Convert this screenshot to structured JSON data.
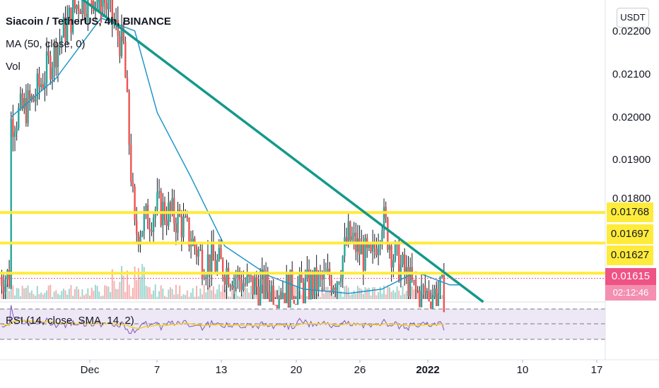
{
  "legend": {
    "title": "Siacoin / TetherUS, 4h, BINANCE",
    "ma": "MA (50, close, 0)",
    "vol": "Vol",
    "rsi": "RSI (14, close, SMA, 14, 2)"
  },
  "currency_button": "USDT",
  "price_axis": {
    "labels": [
      "0.02200",
      "0.02100",
      "0.02000",
      "0.01900",
      "0.01800"
    ]
  },
  "time_axis": {
    "labels": [
      "Dec",
      "7",
      "13",
      "20",
      "26",
      "2022",
      "10",
      "17"
    ]
  },
  "price_tags": {
    "level_1": "0.01768",
    "level_2": "0.01697",
    "level_3": "0.01627",
    "last_price": "0.01615",
    "countdown": "02:12:46"
  },
  "colors": {
    "up": "#26a69a",
    "down": "#ef5350",
    "ma": "#2196c8",
    "trendline": "#13998a",
    "level": "#ffeb3b",
    "rsi": "#7e57c2",
    "rsi_sma": "#f5d11c",
    "rsi_band": "#ede7f6",
    "last_price": "#ef5385"
  },
  "chart_data": {
    "type": "candlestick",
    "symbol": "SCUSDT",
    "timeframe": "4h",
    "exchange": "BINANCE",
    "horizontal_levels": [
      0.01768,
      0.01697,
      0.01627
    ],
    "last_price": 0.01615,
    "trendline": {
      "from": {
        "date": "Nov 29",
        "price": 0.0229
      },
      "to": {
        "date": "Jan 5",
        "price": 0.0156
      }
    },
    "series": [
      {
        "name": "Price (close)",
        "x": [
          "Nov 24",
          "Nov 26",
          "Nov 28",
          "Nov 30",
          "Dec 2",
          "Dec 4",
          "Dec 5",
          "Dec 7",
          "Dec 9",
          "Dec 11",
          "Dec 13",
          "Dec 15",
          "Dec 17",
          "Dec 20",
          "Dec 23",
          "Dec 24",
          "Dec 26",
          "Dec 27",
          "Dec 28",
          "Dec 30",
          "Jan 2",
          "Jan 3"
        ],
        "values": [
          0.0198,
          0.0203,
          0.0215,
          0.0226,
          0.0228,
          0.0215,
          0.0172,
          0.0178,
          0.0175,
          0.0166,
          0.0164,
          0.016,
          0.0159,
          0.0159,
          0.0162,
          0.0171,
          0.0165,
          0.0176,
          0.0167,
          0.0158,
          0.0158,
          0.0162
        ]
      },
      {
        "name": "MA (50, close, 0)",
        "x": [
          "Nov 24",
          "Nov 28",
          "Dec 2",
          "Dec 5",
          "Dec 7",
          "Dec 10",
          "Dec 13",
          "Dec 17",
          "Dec 20",
          "Dec 24",
          "Dec 27",
          "Dec 30",
          "Jan 2",
          "Jan 3"
        ],
        "values": [
          0.0199,
          0.0208,
          0.0222,
          0.0219,
          0.02,
          0.0185,
          0.0169,
          0.0162,
          0.0159,
          0.0158,
          0.0159,
          0.0163,
          0.016,
          0.016
        ]
      }
    ]
  }
}
